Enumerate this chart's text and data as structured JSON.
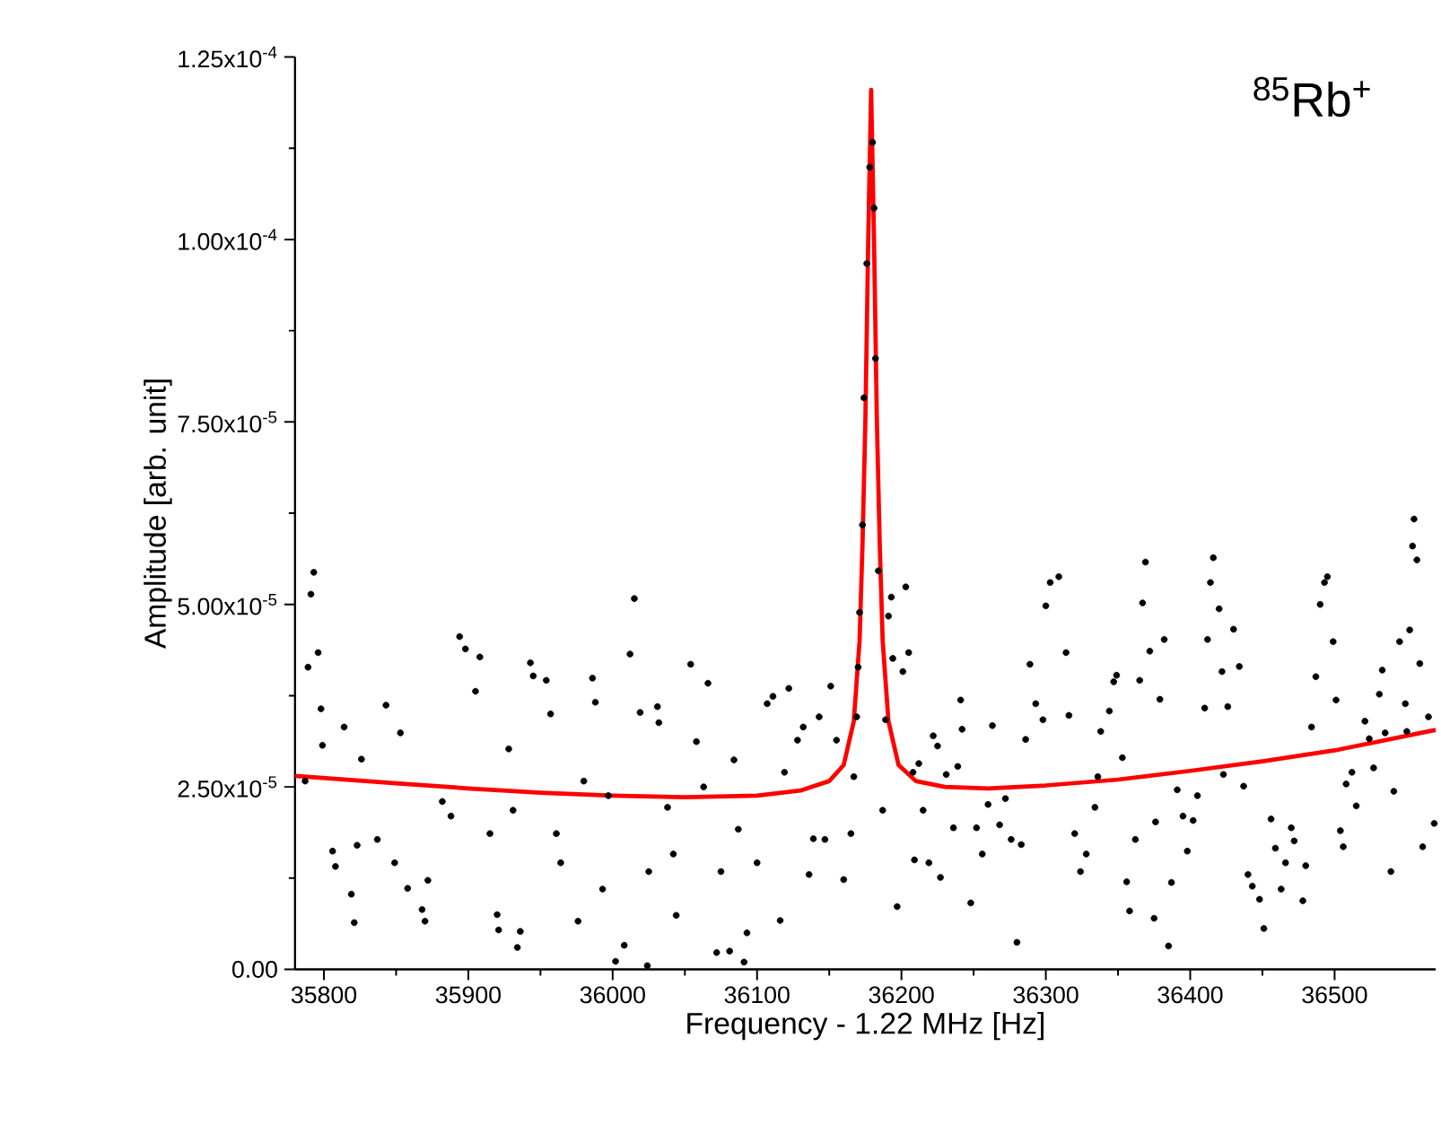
{
  "chart_data": {
    "type": "scatter",
    "xlabel": "Frequency - 1.22 MHz [Hz]",
    "ylabel": "Amplitude [arb. unit]",
    "annotations": [
      "$^{85}$Rb$^{+}$"
    ],
    "xlim": [
      35780,
      36570
    ],
    "ylim": [
      0,
      0.000125
    ],
    "xticks": [
      35800,
      35900,
      36000,
      36100,
      36200,
      36300,
      36400,
      36500
    ],
    "yticks": [
      {
        "value": 0,
        "label": "0.00"
      },
      {
        "value": 2.5e-05,
        "label": "2.50x10$^{-5}$"
      },
      {
        "value": 5e-05,
        "label": "5.00x10$^{-5}$"
      },
      {
        "value": 7.5e-05,
        "label": "7.50x10$^{-5}$"
      },
      {
        "value": 0.0001,
        "label": "1.00x10$^{-4}$"
      },
      {
        "value": 0.000125,
        "label": "1.25x10$^{-4}$"
      }
    ],
    "series": [
      {
        "marker": "circle",
        "color": "#000000",
        "x": [
          35787,
          35789,
          35791,
          35793,
          35796,
          35798,
          35799,
          35806,
          35808,
          35814,
          35819,
          35821,
          35823,
          35826,
          35837,
          35843,
          35849,
          35853,
          35858,
          35868,
          35870,
          35872,
          35882,
          35888,
          35894,
          35898,
          35905,
          35908,
          35915,
          35920,
          35921,
          35928,
          35931,
          35934,
          35936,
          35943,
          35945,
          35954,
          35957,
          35961,
          35964,
          35976,
          35980,
          35986,
          35988,
          35993,
          35997,
          36002,
          36008,
          36012,
          36015,
          36019,
          36024,
          36025,
          36031,
          36032,
          36038,
          36042,
          36044,
          36054,
          36058,
          36063,
          36066,
          36072,
          36075,
          36081,
          36084,
          36087,
          36091,
          36093,
          36100,
          36107,
          36111,
          36116,
          36119,
          36122,
          36128,
          36132,
          36136,
          36139,
          36143,
          36147,
          36151,
          36155,
          36160,
          36165,
          36167,
          36169,
          36170,
          36171,
          36173,
          36174,
          36176,
          36178,
          36180,
          36181,
          36182,
          36184,
          36187,
          36189,
          36191,
          36193,
          36194,
          36197,
          36201,
          36203,
          36205,
          36208,
          36209,
          36212,
          36215,
          36219,
          36222,
          36225,
          36227,
          36231,
          36236,
          36239,
          36241,
          36242,
          36248,
          36252,
          36256,
          36260,
          36263,
          36268,
          36272,
          36276,
          36280,
          36283,
          36286,
          36289,
          36293,
          36298,
          36300,
          36303,
          36309,
          36314,
          36316,
          36320,
          36324,
          36328,
          36334,
          36336,
          36338,
          36344,
          36347,
          36349,
          36353,
          36356,
          36358,
          36362,
          36365,
          36367,
          36369,
          36372,
          36375,
          36376,
          36379,
          36382,
          36385,
          36387,
          36391,
          36395,
          36398,
          36402,
          36405,
          36410,
          36412,
          36414,
          36416,
          36420,
          36422,
          36423,
          36426,
          36430,
          36434,
          36437,
          36440,
          36443,
          36448,
          36451,
          36456,
          36459,
          36463,
          36466,
          36470,
          36472,
          36478,
          36480,
          36484,
          36487,
          36490,
          36493,
          36495,
          36499,
          36501,
          36504,
          36506,
          36508,
          36512,
          36515,
          36521,
          36524,
          36527,
          36531,
          36533,
          36535,
          36539,
          36541,
          36545,
          36549,
          36550,
          36552,
          36554,
          36555,
          36557,
          36559,
          36561,
          36565,
          36569
        ],
        "values": [
          2.58e-05,
          4.14e-05,
          5.14e-05,
          5.44e-05,
          4.34e-05,
          3.57e-05,
          3.07e-05,
          1.62e-05,
          1.41e-05,
          3.32e-05,
          1.03e-05,
          6.4e-06,
          1.7e-05,
          2.88e-05,
          1.78e-05,
          3.62e-05,
          1.46e-05,
          3.24e-05,
          1.11e-05,
          8.2e-06,
          6.6e-06,
          1.22e-05,
          2.3e-05,
          2.1e-05,
          4.56e-05,
          4.39e-05,
          3.81e-05,
          4.28e-05,
          1.86e-05,
          7.5e-06,
          5.4e-06,
          3.02e-05,
          2.18e-05,
          3e-06,
          5.2e-06,
          4.2e-05,
          4.02e-05,
          3.96e-05,
          3.5e-05,
          1.86e-05,
          1.46e-05,
          6.6e-06,
          2.58e-05,
          3.99e-05,
          3.66e-05,
          1.1e-05,
          2.38e-05,
          1.1e-06,
          3.3e-06,
          4.32e-05,
          5.08e-05,
          3.52e-05,
          5e-07,
          1.34e-05,
          3.6e-05,
          3.38e-05,
          2.22e-05,
          1.58e-05,
          7.4e-06,
          4.18e-05,
          3.12e-05,
          2.5e-05,
          3.92e-05,
          2.3e-06,
          1.34e-05,
          2.5e-06,
          2.87e-05,
          1.92e-05,
          1e-06,
          5e-06,
          1.46e-05,
          3.64e-05,
          3.74e-05,
          6.7e-06,
          2.7e-05,
          3.85e-05,
          3.14e-05,
          3.32e-05,
          1.3e-05,
          1.79e-05,
          3.46e-05,
          1.78e-05,
          3.88e-05,
          3.14e-05,
          1.23e-05,
          1.86e-05,
          2.64e-05,
          3.46e-05,
          4.14e-05,
          4.89e-05,
          6.09e-05,
          7.83e-05,
          9.67e-05,
          0.0001099,
          0.0001133,
          0.0001043,
          8.37e-05,
          5.46e-05,
          2.18e-05,
          3.42e-05,
          4.84e-05,
          5.1e-05,
          4.26e-05,
          8.6e-06,
          4.08e-05,
          5.24e-05,
          4.34e-05,
          2.7e-05,
          1.5e-05,
          2.82e-05,
          2.18e-05,
          1.46e-05,
          3.2e-05,
          3.06e-05,
          1.26e-05,
          2.67e-05,
          1.94e-05,
          2.78e-05,
          3.69e-05,
          3.29e-05,
          9.1e-06,
          1.94e-05,
          1.58e-05,
          2.26e-05,
          3.34e-05,
          1.98e-05,
          2.34e-05,
          1.78e-05,
          3.7e-06,
          1.71e-05,
          3.15e-05,
          4.18e-05,
          3.64e-05,
          3.42e-05,
          4.98e-05,
          5.3e-05,
          5.38e-05,
          4.34e-05,
          3.48e-05,
          1.86e-05,
          1.34e-05,
          1.58e-05,
          2.22e-05,
          2.64e-05,
          3.26e-05,
          3.54e-05,
          3.94e-05,
          4.03e-05,
          2.9e-05,
          1.2e-05,
          8e-06,
          1.78e-05,
          3.96e-05,
          5.02e-05,
          5.58e-05,
          4.36e-05,
          7e-06,
          2.02e-05,
          3.7e-05,
          4.52e-05,
          3.2e-06,
          1.19e-05,
          2.46e-05,
          2.1e-05,
          1.62e-05,
          2.04e-05,
          2.38e-05,
          3.58e-05,
          4.52e-05,
          5.3e-05,
          5.64e-05,
          4.94e-05,
          4.08e-05,
          2.67e-05,
          3.6e-05,
          4.66e-05,
          4.15e-05,
          2.51e-05,
          1.3e-05,
          1.14e-05,
          9.6e-06,
          5.6e-06,
          2.06e-05,
          1.66e-05,
          1.1e-05,
          1.46e-05,
          1.94e-05,
          1.76e-05,
          9.4e-06,
          1.42e-05,
          3.32e-05,
          4.01e-05,
          5e-05,
          5.3e-05,
          5.38e-05,
          4.49e-05,
          3.69e-05,
          1.9e-05,
          1.68e-05,
          2.54e-05,
          2.7e-05,
          2.24e-05,
          3.4e-05,
          3.16e-05,
          2.76e-05,
          3.77e-05,
          4.1e-05,
          3.24e-05,
          1.34e-05,
          2.44e-05,
          4.49e-05,
          3.64e-05,
          3.26e-05,
          4.65e-05,
          5.8e-05,
          6.17e-05,
          5.61e-05,
          4.19e-05,
          1.68e-05,
          3.46e-05,
          2e-05
        ]
      },
      {
        "type": "line",
        "marker": "none",
        "color": "#ff0000",
        "x": [
          35780,
          35850,
          35900,
          35950,
          36000,
          36050,
          36100,
          36130,
          36150,
          36160,
          36167,
          36171,
          36173,
          36175,
          36177,
          36179,
          36181,
          36183,
          36185,
          36187,
          36191,
          36198,
          36210,
          36230,
          36260,
          36300,
          36350,
          36400,
          36450,
          36500,
          36550,
          36570
        ],
        "values": [
          2.65e-05,
          2.55e-05,
          2.48e-05,
          2.42e-05,
          2.38e-05,
          2.36e-05,
          2.38e-05,
          2.45e-05,
          2.58e-05,
          2.8e-05,
          3.4e-05,
          4.5e-05,
          5.8e-05,
          7.5e-05,
          0.0001,
          0.0001205,
          0.0001,
          7.5e-05,
          5.8e-05,
          4.5e-05,
          3.4e-05,
          2.8e-05,
          2.58e-05,
          2.5e-05,
          2.48e-05,
          2.52e-05,
          2.6e-05,
          2.72e-05,
          2.85e-05,
          3e-05,
          3.2e-05,
          3.28e-05
        ]
      }
    ]
  }
}
